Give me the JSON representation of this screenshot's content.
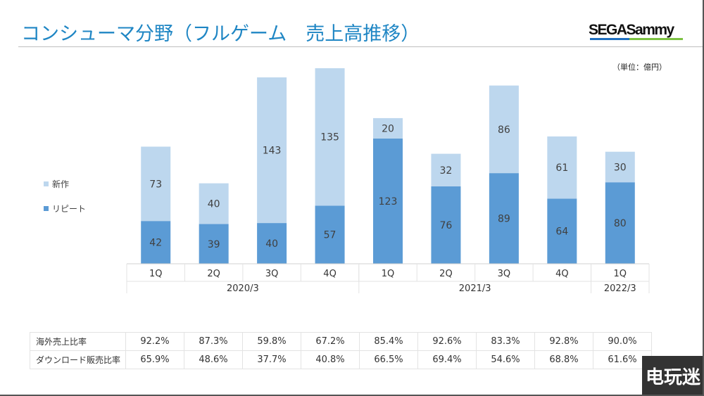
{
  "title": "コンシューマ分野（フルゲーム　売上高推移）",
  "logo_text": "SEGASammy",
  "unit_label": "（単位：億円）",
  "watermark": "电玩迷",
  "colors": {
    "new": "#bdd7ee",
    "repeat": "#5b9bd5",
    "title": "#1f86c4"
  },
  "chart_data": {
    "type": "bar",
    "stacked": true,
    "categories": [
      "1Q",
      "2Q",
      "3Q",
      "4Q",
      "1Q",
      "2Q",
      "3Q",
      "4Q",
      "1Q"
    ],
    "groups": [
      {
        "label": "2020/3",
        "span": 4
      },
      {
        "label": "2021/3",
        "span": 4
      },
      {
        "label": "2022/3",
        "span": 1
      }
    ],
    "series": [
      {
        "name": "リピート",
        "values": [
          42,
          39,
          40,
          57,
          123,
          76,
          89,
          64,
          80
        ]
      },
      {
        "name": "新作",
        "values": [
          73,
          40,
          143,
          135,
          20,
          32,
          86,
          61,
          30
        ]
      }
    ],
    "legend_position": "left",
    "grid": false,
    "ylim": [
      0,
      200
    ]
  },
  "table": {
    "rows": [
      {
        "label": "海外売上比率",
        "values": [
          "92.2%",
          "87.3%",
          "59.8%",
          "67.2%",
          "85.4%",
          "92.6%",
          "83.3%",
          "92.8%",
          "90.0%"
        ]
      },
      {
        "label": "ダウンロード販売比率",
        "values": [
          "65.9%",
          "48.6%",
          "37.7%",
          "40.8%",
          "66.5%",
          "69.4%",
          "54.6%",
          "68.8%",
          "61.6%"
        ]
      }
    ]
  }
}
